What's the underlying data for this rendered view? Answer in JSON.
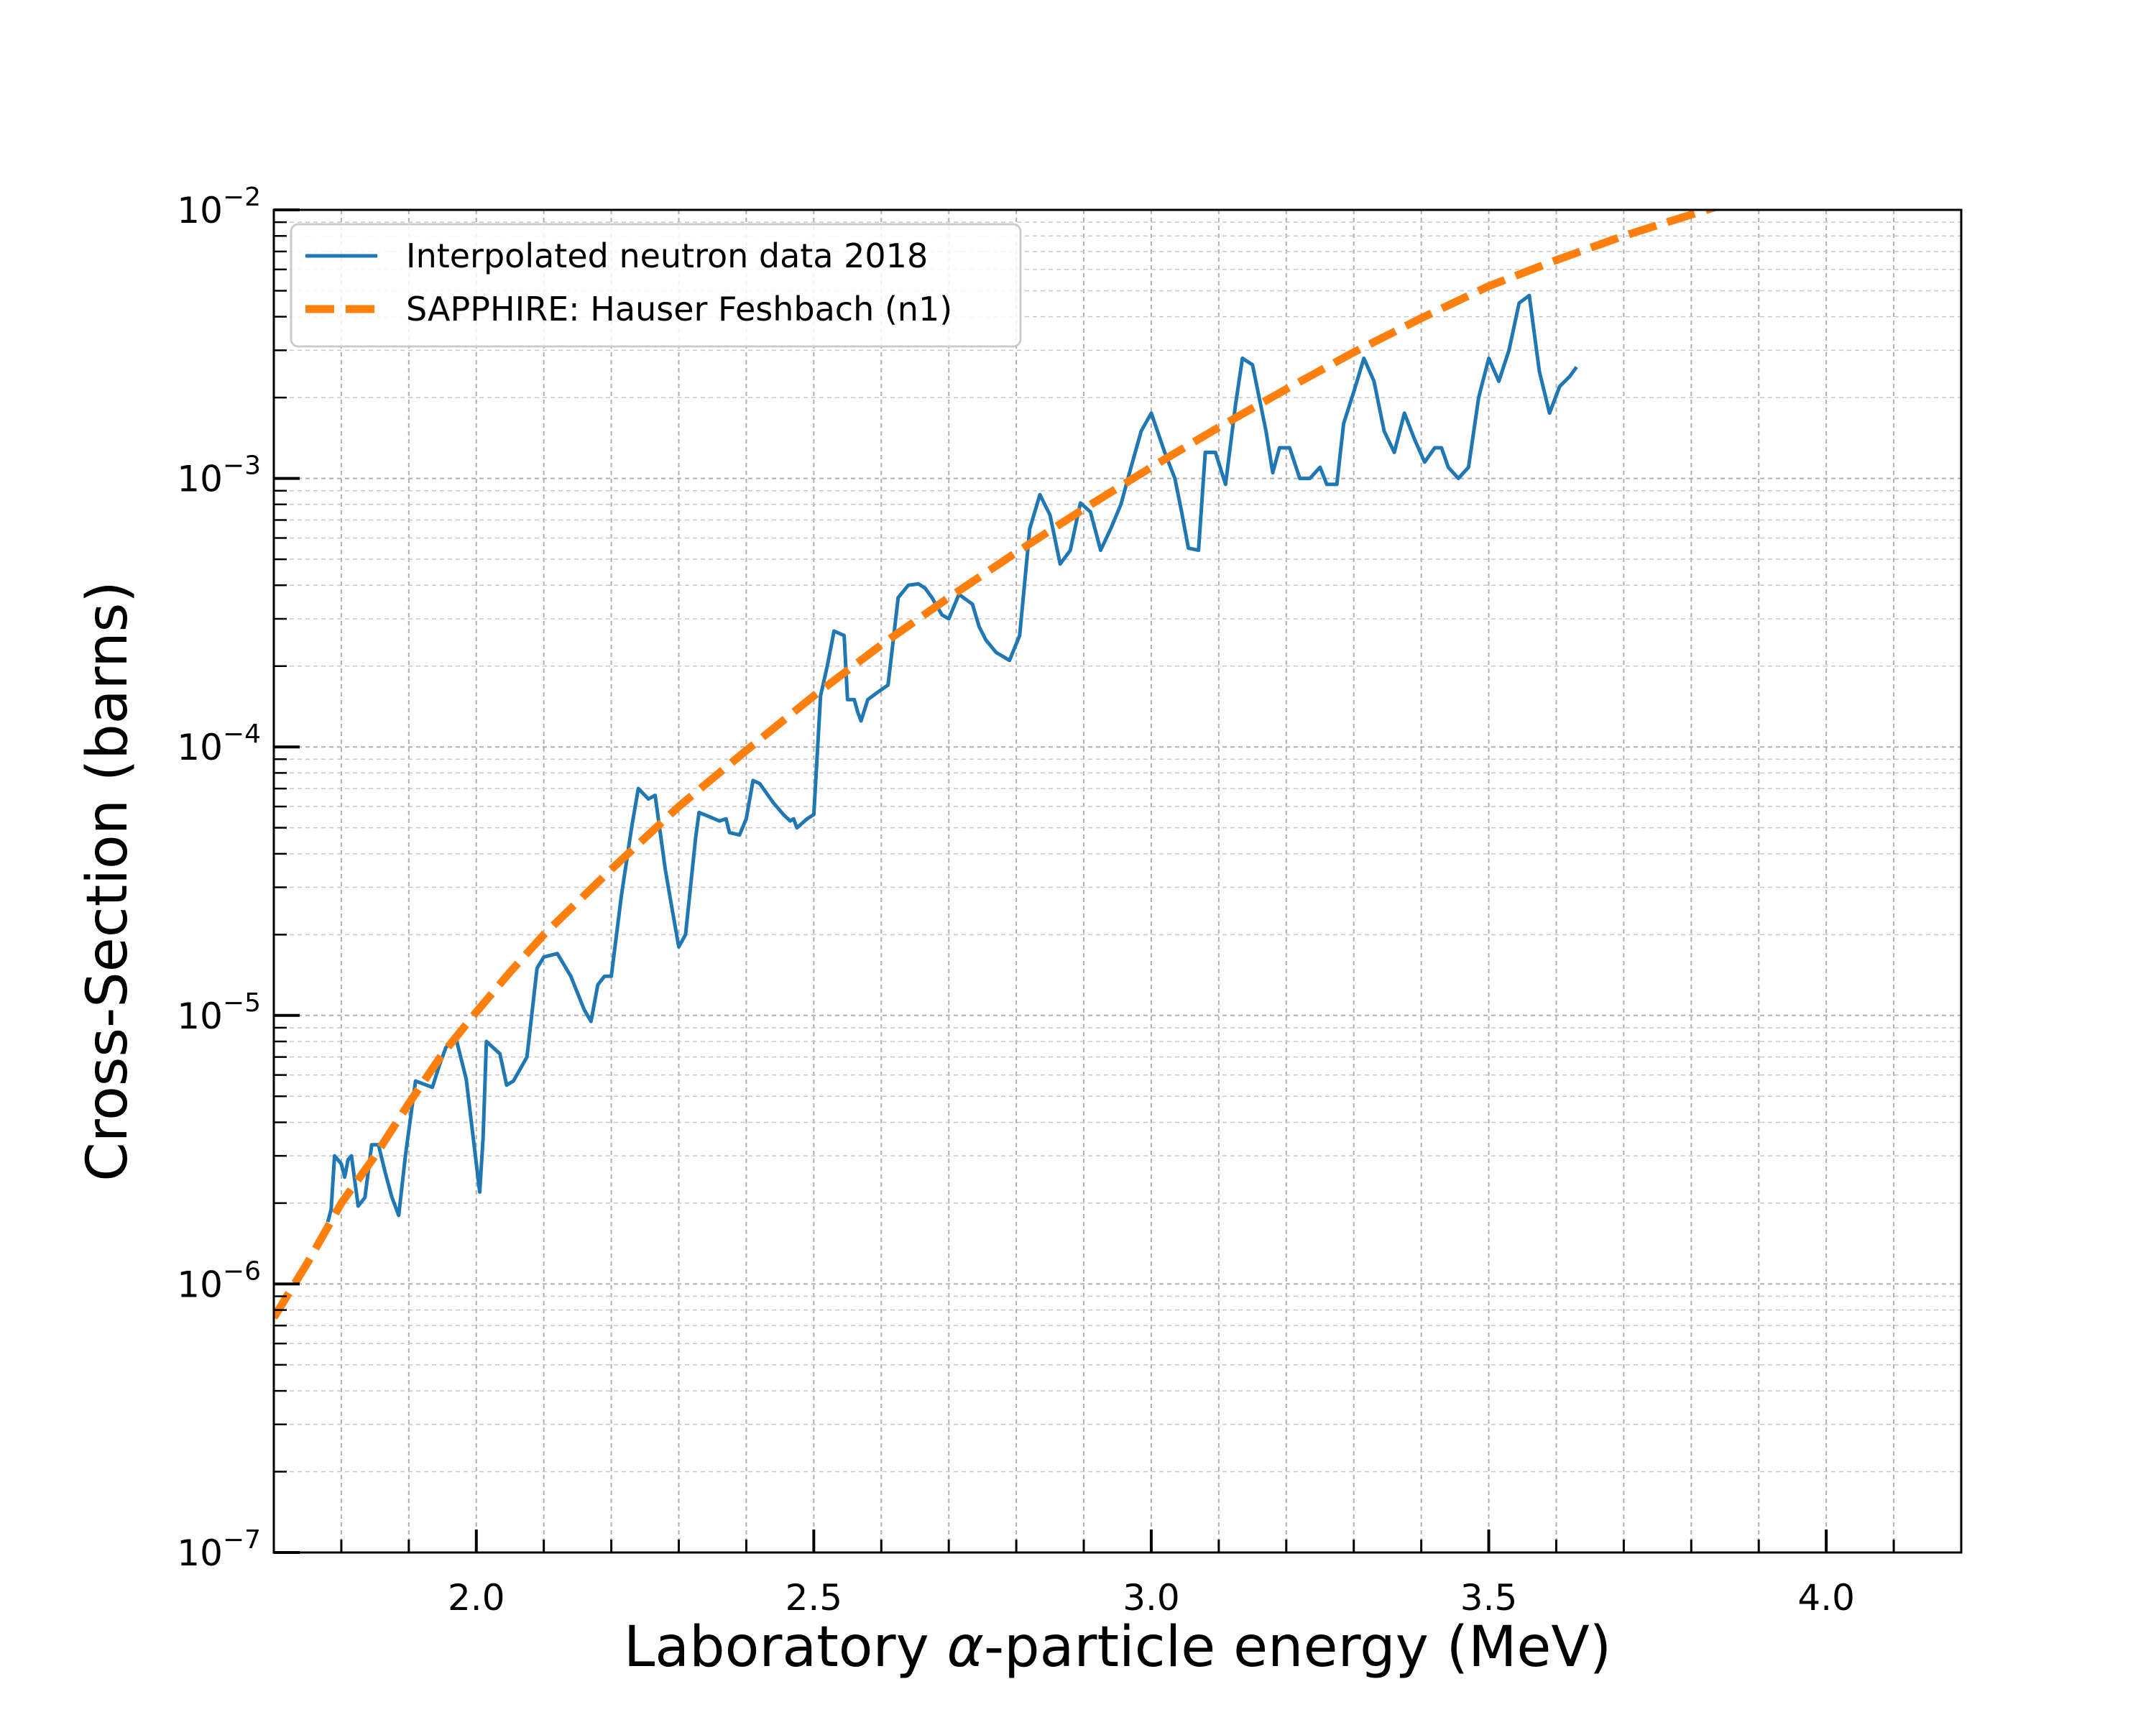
{
  "chart_data": {
    "type": "line",
    "xlabel": {
      "pre": "Laboratory ",
      "symbol": "α",
      "post": "-particle energy (MeV)"
    },
    "ylabel": "Cross-Section (barns)",
    "xlim": [
      1.7,
      4.2
    ],
    "ylim": [
      1e-07,
      0.01
    ],
    "yscale": "log",
    "grid": true,
    "legend_position": "top-left",
    "x_ticks": [
      {
        "value": 2.0,
        "label": "2.0"
      },
      {
        "value": 2.5,
        "label": "2.5"
      },
      {
        "value": 3.0,
        "label": "3.0"
      },
      {
        "value": 3.5,
        "label": "3.5"
      },
      {
        "value": 4.0,
        "label": "4.0"
      }
    ],
    "y_ticks": [
      {
        "value": 1e-07,
        "base": "10",
        "exp": "−7"
      },
      {
        "value": 1e-06,
        "base": "10",
        "exp": "−6"
      },
      {
        "value": 1e-05,
        "base": "10",
        "exp": "−5"
      },
      {
        "value": 0.0001,
        "base": "10",
        "exp": "−4"
      },
      {
        "value": 0.001,
        "base": "10",
        "exp": "−3"
      },
      {
        "value": 0.01,
        "base": "10",
        "exp": "−2"
      }
    ],
    "series": [
      {
        "name": "Interpolated neutron data 2018",
        "color": "#1f77b4",
        "style": "solid",
        "points": [
          [
            1.78,
            1.7e-06
          ],
          [
            1.785,
            1.9e-06
          ],
          [
            1.79,
            3e-06
          ],
          [
            1.8,
            2.8e-06
          ],
          [
            1.805,
            2.5e-06
          ],
          [
            1.81,
            2.9e-06
          ],
          [
            1.815,
            3e-06
          ],
          [
            1.825,
            1.95e-06
          ],
          [
            1.835,
            2.1e-06
          ],
          [
            1.845,
            3.3e-06
          ],
          [
            1.855,
            3.3e-06
          ],
          [
            1.865,
            2.6e-06
          ],
          [
            1.875,
            2.1e-06
          ],
          [
            1.885,
            1.8e-06
          ],
          [
            1.895,
            3e-06
          ],
          [
            1.91,
            5.7e-06
          ],
          [
            1.935,
            5.4e-06
          ],
          [
            1.945,
            6.5e-06
          ],
          [
            1.955,
            7.6e-06
          ],
          [
            1.97,
            8.2e-06
          ],
          [
            1.985,
            5.8e-06
          ],
          [
            2.005,
            2.2e-06
          ],
          [
            2.01,
            3.5e-06
          ],
          [
            2.015,
            8e-06
          ],
          [
            2.035,
            7.2e-06
          ],
          [
            2.045,
            5.5e-06
          ],
          [
            2.055,
            5.7e-06
          ],
          [
            2.075,
            7e-06
          ],
          [
            2.09,
            1.5e-05
          ],
          [
            2.1,
            1.65e-05
          ],
          [
            2.12,
            1.7e-05
          ],
          [
            2.14,
            1.4e-05
          ],
          [
            2.16,
            1.05e-05
          ],
          [
            2.17,
            9.5e-06
          ],
          [
            2.18,
            1.3e-05
          ],
          [
            2.19,
            1.4e-05
          ],
          [
            2.2,
            1.4e-05
          ],
          [
            2.215,
            2.8e-05
          ],
          [
            2.23,
            5e-05
          ],
          [
            2.24,
            7e-05
          ],
          [
            2.255,
            6.4e-05
          ],
          [
            2.265,
            6.6e-05
          ],
          [
            2.28,
            3.5e-05
          ],
          [
            2.29,
            2.5e-05
          ],
          [
            2.3,
            1.8e-05
          ],
          [
            2.31,
            2e-05
          ],
          [
            2.325,
            4.6e-05
          ],
          [
            2.33,
            5.7e-05
          ],
          [
            2.345,
            5.5e-05
          ],
          [
            2.36,
            5.3e-05
          ],
          [
            2.37,
            5.4e-05
          ],
          [
            2.375,
            4.8e-05
          ],
          [
            2.39,
            4.7e-05
          ],
          [
            2.4,
            5.4e-05
          ],
          [
            2.41,
            7.5e-05
          ],
          [
            2.42,
            7.3e-05
          ],
          [
            2.44,
            6.2e-05
          ],
          [
            2.455,
            5.6e-05
          ],
          [
            2.465,
            5.3e-05
          ],
          [
            2.47,
            5.4e-05
          ],
          [
            2.475,
            5e-05
          ],
          [
            2.49,
            5.4e-05
          ],
          [
            2.5,
            5.6e-05
          ],
          [
            2.51,
            0.000155
          ],
          [
            2.52,
            0.0002
          ],
          [
            2.53,
            0.00027
          ],
          [
            2.545,
            0.00026
          ],
          [
            2.55,
            0.00015
          ],
          [
            2.56,
            0.00015
          ],
          [
            2.565,
            0.000135
          ],
          [
            2.57,
            0.000125
          ],
          [
            2.58,
            0.00015
          ],
          [
            2.595,
            0.00016
          ],
          [
            2.61,
            0.00017
          ],
          [
            2.625,
            0.00036
          ],
          [
            2.64,
            0.0004
          ],
          [
            2.655,
            0.000405
          ],
          [
            2.665,
            0.00039
          ],
          [
            2.675,
            0.00036
          ],
          [
            2.69,
            0.00031
          ],
          [
            2.7,
            0.0003
          ],
          [
            2.715,
            0.00037
          ],
          [
            2.735,
            0.00034
          ],
          [
            2.745,
            0.00028
          ],
          [
            2.755,
            0.00025
          ],
          [
            2.77,
            0.000225
          ],
          [
            2.79,
            0.00021
          ],
          [
            2.805,
            0.00026
          ],
          [
            2.82,
            0.00065
          ],
          [
            2.835,
            0.00087
          ],
          [
            2.85,
            0.00073
          ],
          [
            2.865,
            0.00048
          ],
          [
            2.88,
            0.00054
          ],
          [
            2.895,
            0.00081
          ],
          [
            2.91,
            0.00075
          ],
          [
            2.925,
            0.00054
          ],
          [
            2.94,
            0.00065
          ],
          [
            2.955,
            0.0008
          ],
          [
            2.97,
            0.0011
          ],
          [
            2.985,
            0.0015
          ],
          [
            3.0,
            0.00175
          ],
          [
            3.02,
            0.00125
          ],
          [
            3.035,
            0.001
          ],
          [
            3.045,
            0.00075
          ],
          [
            3.055,
            0.00055
          ],
          [
            3.07,
            0.00054
          ],
          [
            3.08,
            0.00125
          ],
          [
            3.095,
            0.00125
          ],
          [
            3.11,
            0.00095
          ],
          [
            3.125,
            0.0019
          ],
          [
            3.135,
            0.0028
          ],
          [
            3.15,
            0.00265
          ],
          [
            3.17,
            0.0015
          ],
          [
            3.18,
            0.00105
          ],
          [
            3.19,
            0.0013
          ],
          [
            3.205,
            0.0013
          ],
          [
            3.22,
            0.001
          ],
          [
            3.235,
            0.001
          ],
          [
            3.25,
            0.0011
          ],
          [
            3.26,
            0.00095
          ],
          [
            3.275,
            0.00095
          ],
          [
            3.285,
            0.0016
          ],
          [
            3.3,
            0.0021
          ],
          [
            3.315,
            0.0028
          ],
          [
            3.33,
            0.0023
          ],
          [
            3.345,
            0.0015
          ],
          [
            3.36,
            0.00125
          ],
          [
            3.375,
            0.00175
          ],
          [
            3.39,
            0.0014
          ],
          [
            3.405,
            0.00115
          ],
          [
            3.42,
            0.0013
          ],
          [
            3.43,
            0.0013
          ],
          [
            3.44,
            0.0011
          ],
          [
            3.455,
            0.001
          ],
          [
            3.47,
            0.0011
          ],
          [
            3.485,
            0.002
          ],
          [
            3.5,
            0.0028
          ],
          [
            3.515,
            0.0023
          ],
          [
            3.53,
            0.003
          ],
          [
            3.545,
            0.0045
          ],
          [
            3.56,
            0.0048
          ],
          [
            3.575,
            0.0025
          ],
          [
            3.59,
            0.00175
          ],
          [
            3.605,
            0.0022
          ],
          [
            3.62,
            0.0024
          ],
          [
            3.63,
            0.0026
          ]
        ]
      },
      {
        "name": "SAPPHIRE: Hauser Feshbach (n1)",
        "color": "#ff7f0e",
        "style": "dashed",
        "points": [
          [
            1.7,
            7.5e-07
          ],
          [
            1.75,
            1.2e-06
          ],
          [
            1.8,
            2e-06
          ],
          [
            1.85,
            3e-06
          ],
          [
            1.9,
            4.7e-06
          ],
          [
            1.95,
            7.2e-06
          ],
          [
            2.0,
            1.03e-05
          ],
          [
            2.05,
            1.45e-05
          ],
          [
            2.1,
            2e-05
          ],
          [
            2.2,
            3.5e-05
          ],
          [
            2.3,
            6e-05
          ],
          [
            2.4,
            9.7e-05
          ],
          [
            2.5,
            0.000155
          ],
          [
            2.6,
            0.00024
          ],
          [
            2.7,
            0.00036
          ],
          [
            2.8,
            0.00053
          ],
          [
            2.9,
            0.00077
          ],
          [
            3.0,
            0.0011
          ],
          [
            3.1,
            0.00155
          ],
          [
            3.2,
            0.00215
          ],
          [
            3.3,
            0.00295
          ],
          [
            3.4,
            0.00395
          ],
          [
            3.5,
            0.0052
          ],
          [
            3.6,
            0.0065
          ],
          [
            3.7,
            0.008
          ],
          [
            3.8,
            0.0096
          ],
          [
            3.85,
            0.0105
          ]
        ]
      }
    ]
  }
}
